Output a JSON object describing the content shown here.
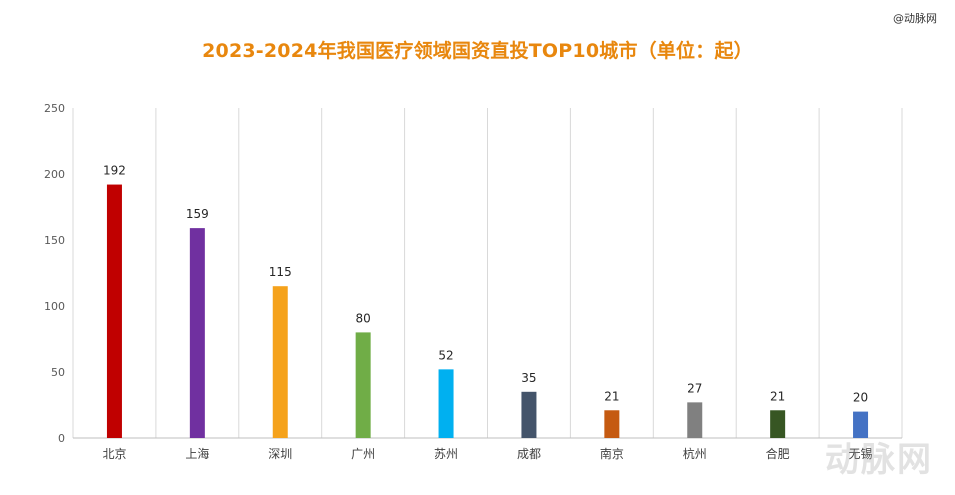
{
  "brand_tag": "@动脉网",
  "watermark": "动脉网",
  "chart_data": {
    "type": "bar",
    "title": "2023-2024年我国医疗领域国资直投TOP10城市（单位：起）",
    "xlabel": "",
    "ylabel": "",
    "ylim": [
      0,
      250
    ],
    "yticks": [
      0,
      50,
      100,
      150,
      200,
      250
    ],
    "grid": "vertical",
    "categories": [
      "北京",
      "上海",
      "深圳",
      "广州",
      "苏州",
      "成都",
      "南京",
      "杭州",
      "合肥",
      "无锡"
    ],
    "values": [
      192,
      159,
      115,
      80,
      52,
      35,
      21,
      27,
      21,
      20
    ],
    "colors": [
      "#c00000",
      "#7030a0",
      "#f5a21b",
      "#70ad47",
      "#00b0f0",
      "#44546a",
      "#c55a11",
      "#808080",
      "#375623",
      "#4472c4"
    ]
  }
}
